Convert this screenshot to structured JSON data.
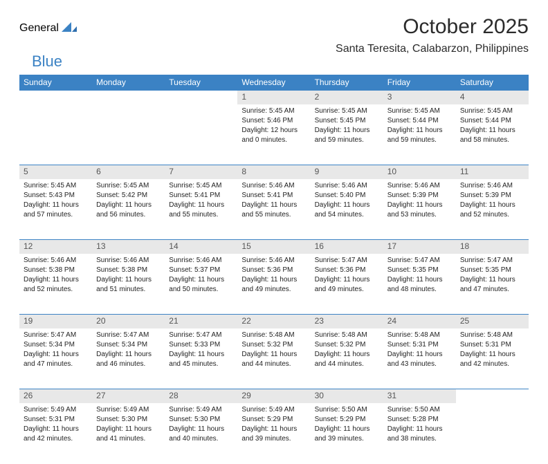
{
  "brand": {
    "part1": "General",
    "part2": "Blue"
  },
  "title": "October 2025",
  "location": "Santa Teresita, Calabarzon, Philippines",
  "colors": {
    "accent": "#3b82c4",
    "header_bg": "#3b82c4",
    "header_fg": "#ffffff",
    "daynum_bg": "#e8e8e8",
    "text": "#222222"
  },
  "days_of_week": [
    "Sunday",
    "Monday",
    "Tuesday",
    "Wednesday",
    "Thursday",
    "Friday",
    "Saturday"
  ],
  "weeks": [
    [
      null,
      null,
      null,
      {
        "n": "1",
        "sr": "Sunrise: 5:45 AM",
        "ss": "Sunset: 5:46 PM",
        "dl1": "Daylight: 12 hours",
        "dl2": "and 0 minutes."
      },
      {
        "n": "2",
        "sr": "Sunrise: 5:45 AM",
        "ss": "Sunset: 5:45 PM",
        "dl1": "Daylight: 11 hours",
        "dl2": "and 59 minutes."
      },
      {
        "n": "3",
        "sr": "Sunrise: 5:45 AM",
        "ss": "Sunset: 5:44 PM",
        "dl1": "Daylight: 11 hours",
        "dl2": "and 59 minutes."
      },
      {
        "n": "4",
        "sr": "Sunrise: 5:45 AM",
        "ss": "Sunset: 5:44 PM",
        "dl1": "Daylight: 11 hours",
        "dl2": "and 58 minutes."
      }
    ],
    [
      {
        "n": "5",
        "sr": "Sunrise: 5:45 AM",
        "ss": "Sunset: 5:43 PM",
        "dl1": "Daylight: 11 hours",
        "dl2": "and 57 minutes."
      },
      {
        "n": "6",
        "sr": "Sunrise: 5:45 AM",
        "ss": "Sunset: 5:42 PM",
        "dl1": "Daylight: 11 hours",
        "dl2": "and 56 minutes."
      },
      {
        "n": "7",
        "sr": "Sunrise: 5:45 AM",
        "ss": "Sunset: 5:41 PM",
        "dl1": "Daylight: 11 hours",
        "dl2": "and 55 minutes."
      },
      {
        "n": "8",
        "sr": "Sunrise: 5:46 AM",
        "ss": "Sunset: 5:41 PM",
        "dl1": "Daylight: 11 hours",
        "dl2": "and 55 minutes."
      },
      {
        "n": "9",
        "sr": "Sunrise: 5:46 AM",
        "ss": "Sunset: 5:40 PM",
        "dl1": "Daylight: 11 hours",
        "dl2": "and 54 minutes."
      },
      {
        "n": "10",
        "sr": "Sunrise: 5:46 AM",
        "ss": "Sunset: 5:39 PM",
        "dl1": "Daylight: 11 hours",
        "dl2": "and 53 minutes."
      },
      {
        "n": "11",
        "sr": "Sunrise: 5:46 AM",
        "ss": "Sunset: 5:39 PM",
        "dl1": "Daylight: 11 hours",
        "dl2": "and 52 minutes."
      }
    ],
    [
      {
        "n": "12",
        "sr": "Sunrise: 5:46 AM",
        "ss": "Sunset: 5:38 PM",
        "dl1": "Daylight: 11 hours",
        "dl2": "and 52 minutes."
      },
      {
        "n": "13",
        "sr": "Sunrise: 5:46 AM",
        "ss": "Sunset: 5:38 PM",
        "dl1": "Daylight: 11 hours",
        "dl2": "and 51 minutes."
      },
      {
        "n": "14",
        "sr": "Sunrise: 5:46 AM",
        "ss": "Sunset: 5:37 PM",
        "dl1": "Daylight: 11 hours",
        "dl2": "and 50 minutes."
      },
      {
        "n": "15",
        "sr": "Sunrise: 5:46 AM",
        "ss": "Sunset: 5:36 PM",
        "dl1": "Daylight: 11 hours",
        "dl2": "and 49 minutes."
      },
      {
        "n": "16",
        "sr": "Sunrise: 5:47 AM",
        "ss": "Sunset: 5:36 PM",
        "dl1": "Daylight: 11 hours",
        "dl2": "and 49 minutes."
      },
      {
        "n": "17",
        "sr": "Sunrise: 5:47 AM",
        "ss": "Sunset: 5:35 PM",
        "dl1": "Daylight: 11 hours",
        "dl2": "and 48 minutes."
      },
      {
        "n": "18",
        "sr": "Sunrise: 5:47 AM",
        "ss": "Sunset: 5:35 PM",
        "dl1": "Daylight: 11 hours",
        "dl2": "and 47 minutes."
      }
    ],
    [
      {
        "n": "19",
        "sr": "Sunrise: 5:47 AM",
        "ss": "Sunset: 5:34 PM",
        "dl1": "Daylight: 11 hours",
        "dl2": "and 47 minutes."
      },
      {
        "n": "20",
        "sr": "Sunrise: 5:47 AM",
        "ss": "Sunset: 5:34 PM",
        "dl1": "Daylight: 11 hours",
        "dl2": "and 46 minutes."
      },
      {
        "n": "21",
        "sr": "Sunrise: 5:47 AM",
        "ss": "Sunset: 5:33 PM",
        "dl1": "Daylight: 11 hours",
        "dl2": "and 45 minutes."
      },
      {
        "n": "22",
        "sr": "Sunrise: 5:48 AM",
        "ss": "Sunset: 5:32 PM",
        "dl1": "Daylight: 11 hours",
        "dl2": "and 44 minutes."
      },
      {
        "n": "23",
        "sr": "Sunrise: 5:48 AM",
        "ss": "Sunset: 5:32 PM",
        "dl1": "Daylight: 11 hours",
        "dl2": "and 44 minutes."
      },
      {
        "n": "24",
        "sr": "Sunrise: 5:48 AM",
        "ss": "Sunset: 5:31 PM",
        "dl1": "Daylight: 11 hours",
        "dl2": "and 43 minutes."
      },
      {
        "n": "25",
        "sr": "Sunrise: 5:48 AM",
        "ss": "Sunset: 5:31 PM",
        "dl1": "Daylight: 11 hours",
        "dl2": "and 42 minutes."
      }
    ],
    [
      {
        "n": "26",
        "sr": "Sunrise: 5:49 AM",
        "ss": "Sunset: 5:31 PM",
        "dl1": "Daylight: 11 hours",
        "dl2": "and 42 minutes."
      },
      {
        "n": "27",
        "sr": "Sunrise: 5:49 AM",
        "ss": "Sunset: 5:30 PM",
        "dl1": "Daylight: 11 hours",
        "dl2": "and 41 minutes."
      },
      {
        "n": "28",
        "sr": "Sunrise: 5:49 AM",
        "ss": "Sunset: 5:30 PM",
        "dl1": "Daylight: 11 hours",
        "dl2": "and 40 minutes."
      },
      {
        "n": "29",
        "sr": "Sunrise: 5:49 AM",
        "ss": "Sunset: 5:29 PM",
        "dl1": "Daylight: 11 hours",
        "dl2": "and 39 minutes."
      },
      {
        "n": "30",
        "sr": "Sunrise: 5:50 AM",
        "ss": "Sunset: 5:29 PM",
        "dl1": "Daylight: 11 hours",
        "dl2": "and 39 minutes."
      },
      {
        "n": "31",
        "sr": "Sunrise: 5:50 AM",
        "ss": "Sunset: 5:28 PM",
        "dl1": "Daylight: 11 hours",
        "dl2": "and 38 minutes."
      },
      null
    ]
  ]
}
